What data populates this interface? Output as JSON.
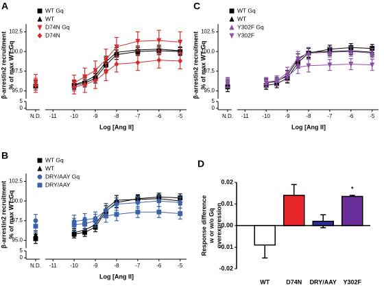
{
  "chart_data": [
    {
      "type": "line",
      "panel_label": "A",
      "ylabel": [
        "β-arrestin2 recruitment",
        "% of max WT Gq"
      ],
      "xlabel": "Log [Ang II]",
      "nd_label": "N.D.",
      "x": [
        -10,
        -9.5,
        -9,
        -8.5,
        -8,
        -7,
        -6,
        -5
      ],
      "xlim": [
        -11.3,
        -4.7
      ],
      "xticks": [
        -11,
        -10,
        -9,
        -8,
        -7,
        -6,
        -5
      ],
      "ylim": [
        94,
        103.5
      ],
      "yticks": [
        {
          "value": 95,
          "label": "95.0"
        },
        97.5,
        {
          "value": 100,
          "label": "100.0"
        },
        102.5
      ],
      "break_ylim": [
        0,
        5
      ],
      "break_yticks": [
        0,
        5
      ],
      "series": [
        {
          "name": "WT Gq",
          "color": "#000000",
          "marker": "square",
          "nd_value": 95.6,
          "nd_error": 0.5,
          "values": [
            95.7,
            96.0,
            96.6,
            98.3,
            99.6,
            100.0,
            100.1,
            100.0
          ],
          "errors": [
            0.5,
            0.5,
            0.6,
            0.7,
            0.6,
            0.5,
            0.5,
            0.5
          ]
        },
        {
          "name": "WT",
          "color": "#000000",
          "marker": "triangle-up",
          "nd_value": 95.9,
          "nd_error": 0.5,
          "values": [
            95.8,
            96.2,
            96.9,
            98.7,
            99.9,
            100.2,
            100.3,
            100.1
          ],
          "errors": [
            0.5,
            0.5,
            0.6,
            0.7,
            0.6,
            0.5,
            0.5,
            0.5
          ]
        },
        {
          "name": "D74N Gq",
          "color": "#d62b2b",
          "marker": "triangle-down",
          "nd_value": 96.1,
          "nd_error": 1.0,
          "values": [
            96.0,
            96.8,
            97.6,
            99.0,
            100.6,
            101.3,
            101.4,
            101.2
          ],
          "errors": [
            1.0,
            1.1,
            1.2,
            1.3,
            1.2,
            1.2,
            1.3,
            1.3
          ]
        },
        {
          "name": "D74N",
          "color": "#d62b2b",
          "marker": "diamond",
          "nd_value": 95.7,
          "nd_error": 0.9,
          "values": [
            95.5,
            95.8,
            96.3,
            97.4,
            98.4,
            98.6,
            98.9,
            98.8
          ],
          "errors": [
            0.9,
            1.0,
            1.0,
            1.1,
            1.0,
            1.0,
            1.0,
            1.0
          ]
        }
      ]
    },
    {
      "type": "line",
      "panel_label": "B",
      "ylabel": [
        "β-arrestin2 recruitment",
        "% of max WT Gq"
      ],
      "xlabel": "Log [Ang II]",
      "nd_label": "N.D.",
      "x": [
        -10,
        -9.5,
        -9,
        -8.5,
        -8,
        -7,
        -6,
        -5
      ],
      "xlim": [
        -11.3,
        -4.7
      ],
      "xticks": [
        -11,
        -10,
        -9,
        -8,
        -7,
        -6,
        -5
      ],
      "ylim": [
        94,
        103.5
      ],
      "yticks": [
        {
          "value": 95,
          "label": "95.0"
        },
        97.5,
        {
          "value": 100,
          "label": "100.0"
        },
        102.5
      ],
      "break_ylim": [
        0,
        5
      ],
      "break_yticks": [
        0,
        5
      ],
      "series": [
        {
          "name": "WT Gq",
          "color": "#000000",
          "marker": "square",
          "nd_value": 95.2,
          "nd_error": 0.6,
          "values": [
            95.8,
            96.0,
            96.7,
            98.7,
            99.8,
            100.3,
            100.5,
            100.4
          ],
          "errors": [
            0.5,
            0.5,
            0.6,
            0.7,
            0.6,
            0.5,
            0.5,
            0.5
          ]
        },
        {
          "name": "WT",
          "color": "#000000",
          "marker": "triangle-up",
          "nd_value": 95.7,
          "nd_error": 0.5,
          "values": [
            96.0,
            96.3,
            97.0,
            99.0,
            100.1,
            100.2,
            100.3,
            100.0
          ],
          "errors": [
            0.5,
            0.5,
            0.6,
            0.7,
            0.6,
            0.5,
            0.5,
            0.5
          ]
        },
        {
          "name": "DRY/AAY Gq",
          "color": "#3a64a8",
          "marker": "circle",
          "nd_value": 97.5,
          "nd_error": 0.8,
          "values": [
            97.4,
            97.6,
            97.8,
            98.8,
            99.6,
            99.8,
            100.0,
            99.8
          ],
          "errors": [
            0.8,
            0.8,
            0.8,
            0.9,
            0.8,
            0.7,
            0.7,
            0.7
          ]
        },
        {
          "name": "DRY/AAY",
          "color": "#3a64a8",
          "marker": "square",
          "nd_value": 96.8,
          "nd_error": 0.8,
          "values": [
            97.0,
            97.1,
            97.5,
            98.1,
            98.3,
            98.6,
            98.6,
            98.4
          ],
          "errors": [
            0.8,
            0.8,
            0.8,
            0.8,
            0.8,
            0.7,
            0.7,
            0.7
          ]
        }
      ]
    },
    {
      "type": "line",
      "panel_label": "C",
      "ylabel": [
        "β-arrestin2 recruitment",
        "% of max WT Gq"
      ],
      "xlabel": "Log [Ang II]",
      "nd_label": "N.D.",
      "x": [
        -10,
        -9.5,
        -9,
        -8.5,
        -8,
        -7,
        -6,
        -5
      ],
      "xlim": [
        -11.3,
        -4.7
      ],
      "xticks": [
        -11,
        -10,
        -9,
        -8,
        -7,
        -6,
        -5
      ],
      "ylim": [
        94,
        103.5
      ],
      "yticks": [
        {
          "value": 95,
          "label": "95.0"
        },
        97.5,
        {
          "value": 100,
          "label": "100.0"
        },
        102.5
      ],
      "break_ylim": [
        0,
        5
      ],
      "break_yticks": [
        0,
        5
      ],
      "series": [
        {
          "name": "WT Gq",
          "color": "#000000",
          "marker": "square",
          "nd_value": 95.5,
          "nd_error": 0.6,
          "values": [
            95.7,
            95.9,
            96.6,
            98.6,
            99.8,
            100.3,
            100.5,
            100.4
          ],
          "errors": [
            0.5,
            0.5,
            0.6,
            0.7,
            0.6,
            0.5,
            0.5,
            0.5
          ]
        },
        {
          "name": "WT",
          "color": "#000000",
          "marker": "triangle-up",
          "nd_value": 95.9,
          "nd_error": 0.5,
          "values": [
            96.0,
            96.2,
            97.0,
            99.0,
            99.9,
            100.0,
            100.1,
            99.9
          ],
          "errors": [
            0.5,
            0.5,
            0.6,
            0.7,
            0.6,
            0.5,
            0.5,
            0.5
          ]
        },
        {
          "name": "Y302F Gq",
          "color": "#8e4fa8",
          "marker": "triangle-up",
          "nd_value": 96.1,
          "nd_error": 0.6,
          "values": [
            96.0,
            96.3,
            97.3,
            99.2,
            99.8,
            99.9,
            100.0,
            99.8
          ],
          "errors": [
            0.6,
            0.6,
            0.7,
            0.8,
            0.7,
            0.6,
            0.6,
            0.6
          ]
        },
        {
          "name": "Y302F",
          "color": "#8e4fa8",
          "marker": "triangle-down",
          "nd_value": 96.0,
          "nd_error": 0.6,
          "values": [
            96.1,
            96.3,
            96.8,
            98.0,
            98.2,
            98.3,
            98.4,
            98.3
          ],
          "errors": [
            0.6,
            0.6,
            0.7,
            0.8,
            0.8,
            0.7,
            0.7,
            0.7
          ]
        }
      ]
    },
    {
      "type": "bar",
      "panel_label": "D",
      "ylabel": [
        "Response difference",
        "w or w/o Gq",
        "overexpression"
      ],
      "categories": [
        "WT",
        "D74N",
        "DRY/AAY",
        "Y302F"
      ],
      "values": [
        -0.009,
        0.014,
        0.002,
        0.0135
      ],
      "errors": [
        0.006,
        0.005,
        0.003,
        0.0005
      ],
      "colors": [
        "#ffffff",
        "#e8262a",
        "#2b2f8f",
        "#6a2d99"
      ],
      "ylim": [
        -0.02,
        0.02
      ],
      "yticks": [
        -0.02,
        -0.01,
        {
          "value": 0,
          "label": "0.00"
        },
        0.01,
        0.02
      ],
      "annotations": [
        {
          "text": "*",
          "category": "Y302F"
        }
      ]
    }
  ]
}
